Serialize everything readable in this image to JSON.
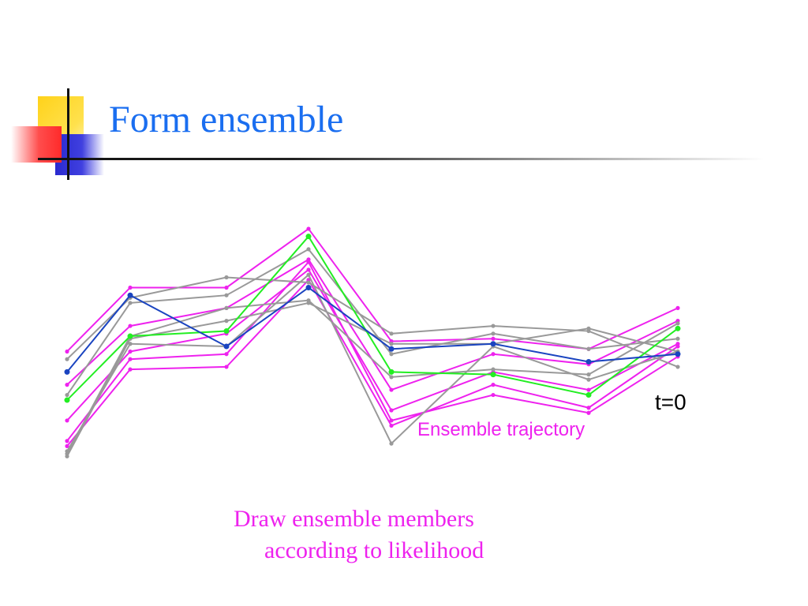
{
  "slide": {
    "title": "Form ensemble",
    "colors": {
      "title": "#1a6ef0",
      "caption": "#ee22ee",
      "deco_yellow": "#ffd21a",
      "deco_blue": "#2a2acf",
      "deco_red": "#ff4d4d"
    },
    "caption": {
      "line1": "Draw ensemble members",
      "line2": "according to likelihood"
    }
  },
  "chart_data": {
    "type": "line",
    "x": [
      1,
      2,
      3,
      4,
      5,
      6,
      7,
      8
    ],
    "ylim": [
      0,
      100
    ],
    "grid": false,
    "annotations": {
      "time_label": "t=0",
      "ensemble_label": "Ensemble trajectory"
    },
    "series": [
      {
        "color": "#ee22ee",
        "values": [
          48,
          73,
          73,
          96,
          52,
          53,
          49,
          65
        ]
      },
      {
        "color": "#ee22ee",
        "values": [
          35,
          58,
          65,
          84,
          33,
          47,
          43,
          60
        ]
      },
      {
        "color": "#ee22ee",
        "values": [
          21,
          48,
          55,
          80,
          25,
          40,
          33,
          51
        ]
      },
      {
        "color": "#ee22ee",
        "values": [
          11,
          41,
          42,
          76,
          19,
          35,
          26,
          50
        ]
      },
      {
        "color": "#ee22ee",
        "values": [
          13,
          45,
          47,
          83,
          21,
          31,
          24,
          46
        ]
      },
      {
        "color": "#999999",
        "values": [
          45,
          69,
          77,
          75,
          55,
          58,
          56,
          42
        ]
      },
      {
        "color": "#999999",
        "values": [
          31,
          67,
          70,
          88,
          47,
          55,
          49,
          53
        ]
      },
      {
        "color": "#999999",
        "values": [
          7,
          53,
          60,
          67,
          51,
          51,
          57,
          48
        ]
      },
      {
        "color": "#999999",
        "values": [
          9,
          51,
          50,
          78,
          12,
          50,
          37,
          48
        ]
      },
      {
        "color": "#999999",
        "values": [
          8,
          54,
          65,
          68,
          38,
          41,
          39,
          59
        ]
      },
      {
        "color": "#22ee22",
        "values": [
          29,
          54,
          56,
          93,
          40,
          39,
          31,
          57
        ]
      },
      {
        "color": "#1a44c0",
        "values": [
          40,
          70,
          50,
          73,
          49,
          51,
          44,
          47
        ]
      }
    ]
  }
}
